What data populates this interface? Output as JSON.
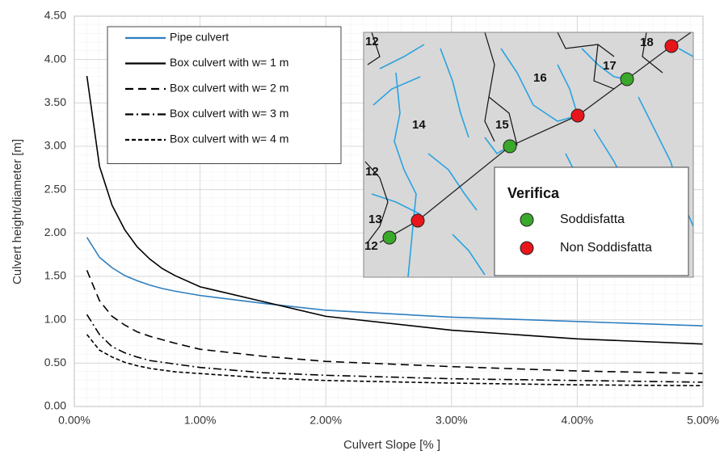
{
  "chart_data": {
    "type": "line",
    "x_label": "Culvert Slope [% ]",
    "y_label": "Culvert height/diameter [m]",
    "xlim": [
      0,
      5
    ],
    "ylim": [
      0,
      4.5
    ],
    "xticks": [
      {
        "value": 0,
        "label": "0.00%"
      },
      {
        "value": 1,
        "label": "1.00%"
      },
      {
        "value": 2,
        "label": "2.00%"
      },
      {
        "value": 3,
        "label": "3.00%"
      },
      {
        "value": 4,
        "label": "4.00%"
      },
      {
        "value": 5,
        "label": "5.00%"
      }
    ],
    "yticks": [
      {
        "value": 0,
        "label": "0.00"
      },
      {
        "value": 0.5,
        "label": "0.50"
      },
      {
        "value": 1,
        "label": "1.00"
      },
      {
        "value": 1.5,
        "label": "1.50"
      },
      {
        "value": 2,
        "label": "2.00"
      },
      {
        "value": 2.5,
        "label": "2.50"
      },
      {
        "value": 3,
        "label": "3.00"
      },
      {
        "value": 3.5,
        "label": "3.50"
      },
      {
        "value": 4,
        "label": "4.00"
      },
      {
        "value": 4.5,
        "label": "4.50"
      }
    ],
    "grid": true,
    "legend": "upper left",
    "x": [
      0.1,
      0.2,
      0.3,
      0.4,
      0.5,
      0.6,
      0.7,
      0.8,
      1.0,
      1.5,
      2.0,
      3.0,
      4.0,
      5.0
    ],
    "series": [
      {
        "name": "Pipe culvert",
        "color": "#2e7ebf",
        "dash": "solid",
        "values": [
          1.95,
          1.72,
          1.6,
          1.51,
          1.45,
          1.4,
          1.36,
          1.33,
          1.28,
          1.19,
          1.11,
          1.03,
          0.98,
          0.93
        ]
      },
      {
        "name": "Box culvert with w= 1 m",
        "color": "#000000",
        "dash": "solid",
        "values": [
          3.81,
          2.77,
          2.32,
          2.04,
          1.84,
          1.7,
          1.59,
          1.51,
          1.38,
          1.21,
          1.04,
          0.88,
          0.78,
          0.72
        ]
      },
      {
        "name": "Box culvert with w= 2 m",
        "color": "#000000",
        "dash": "dashed",
        "values": [
          1.57,
          1.22,
          1.04,
          0.94,
          0.86,
          0.81,
          0.77,
          0.73,
          0.66,
          0.58,
          0.52,
          0.46,
          0.41,
          0.38
        ]
      },
      {
        "name": "Box culvert with w= 3 m",
        "color": "#000000",
        "dash": "dashdot",
        "values": [
          1.06,
          0.83,
          0.69,
          0.62,
          0.57,
          0.53,
          0.51,
          0.49,
          0.45,
          0.39,
          0.36,
          0.32,
          0.3,
          0.28
        ]
      },
      {
        "name": "Box culvert with w= 4 m",
        "color": "#000000",
        "dash": "dotted",
        "values": [
          0.83,
          0.65,
          0.57,
          0.51,
          0.47,
          0.44,
          0.42,
          0.4,
          0.38,
          0.33,
          0.3,
          0.27,
          0.25,
          0.24
        ]
      }
    ]
  },
  "inset_map": {
    "labels": [
      "12",
      "16",
      "17",
      "18",
      "14",
      "15",
      "12",
      "13",
      "12"
    ],
    "legend": {
      "title": "Verifica",
      "items": [
        "Soddisfatta",
        "Non Soddisfatta"
      ]
    }
  }
}
